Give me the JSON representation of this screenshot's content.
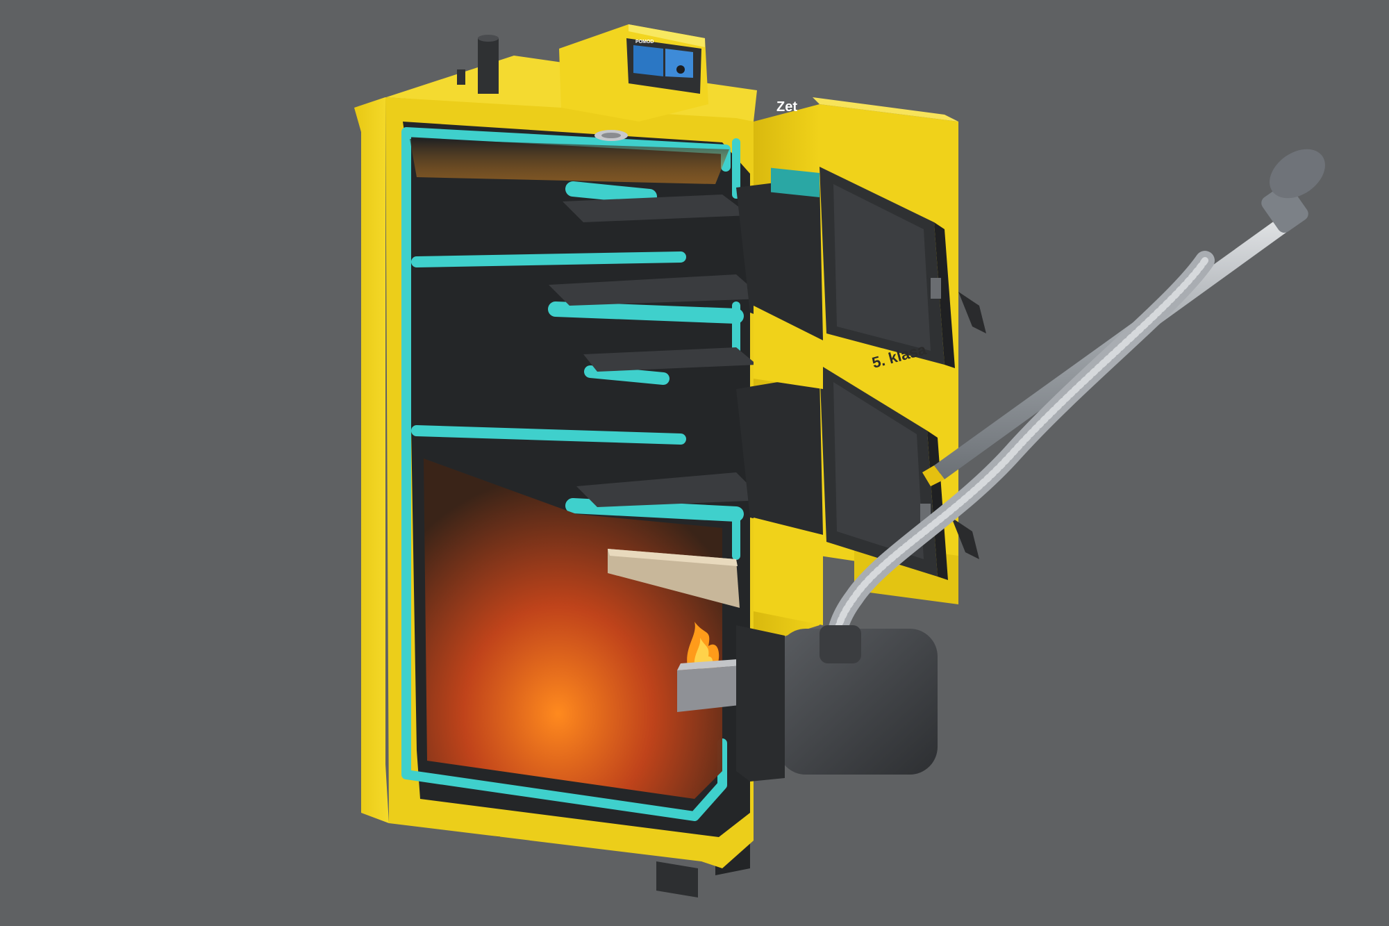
{
  "image": {
    "subject": "pellet boiler cutaway render"
  },
  "controller": {
    "brand_label": "POMOD",
    "screen_left_text": "",
    "screen_right_text": ""
  },
  "emblem": {
    "text": "Zet"
  },
  "side_badge": {
    "text": "5. klasa"
  },
  "colors": {
    "background": "#5f6163",
    "boiler_yellow": "#f0d21a",
    "boiler_yellow_dark": "#c9a90c",
    "water_jacket": "#3fd0cc",
    "steel_dark": "#2f3133",
    "steel_mid": "#4a4c4f",
    "burner_gray": "#44474b",
    "fire_orange": "#ff7a1a",
    "pipe_silver": "#b8bcc2"
  }
}
